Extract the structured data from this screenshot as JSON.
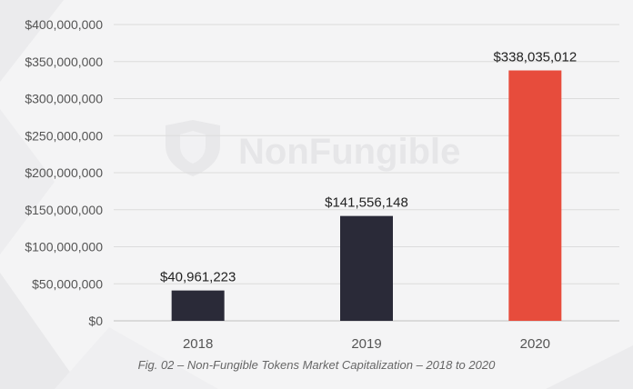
{
  "watermark": "NonFungible",
  "caption": "Fig. 02 – Non-Fungible Tokens Market Capitalization – 2018 to 2020",
  "colors": {
    "dark_bar": "#2a2a38",
    "highlight_bar": "#e74c3c",
    "grid": "#dcdcdc"
  },
  "chart_data": {
    "type": "bar",
    "categories": [
      "2018",
      "2019",
      "2020"
    ],
    "values": [
      40961223,
      141556148,
      338035012
    ],
    "data_labels": [
      "$40,961,223",
      "$141,556,148",
      "$338,035,012"
    ],
    "bar_colors": [
      "#2a2a38",
      "#2a2a38",
      "#e74c3c"
    ],
    "ylim": [
      0,
      400000000
    ],
    "yticks": [
      0,
      50000000,
      100000000,
      150000000,
      200000000,
      250000000,
      300000000,
      350000000,
      400000000
    ],
    "ytick_labels": [
      "$0",
      "$50,000,000",
      "$100,000,000",
      "$150,000,000",
      "$200,000,000",
      "$250,000,000",
      "$300,000,000",
      "$350,000,000",
      "$400,000,000"
    ],
    "grid": true,
    "legend": "none"
  }
}
